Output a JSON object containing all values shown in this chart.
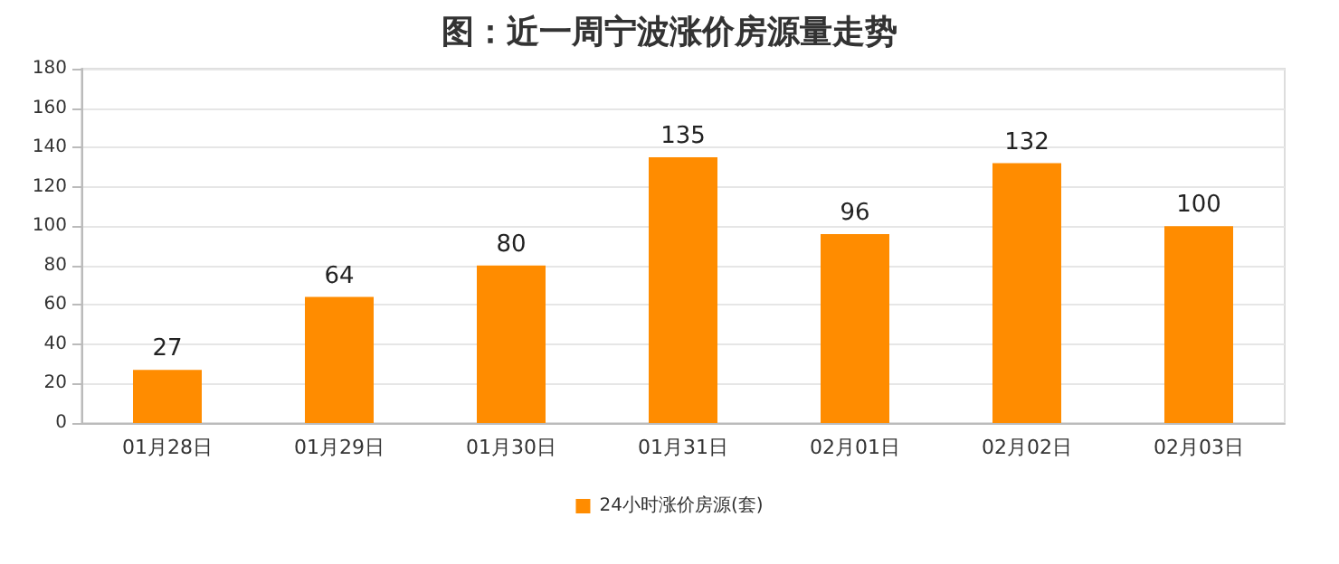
{
  "chart_data": {
    "type": "bar",
    "title": "图：近一周宁波涨价房源量走势",
    "categories": [
      "01月28日",
      "01月29日",
      "01月30日",
      "01月31日",
      "02月01日",
      "02月02日",
      "02月03日"
    ],
    "series": [
      {
        "name": "24小时涨价房源(套)",
        "color": "#ff8c00",
        "values": [
          27,
          64,
          80,
          135,
          96,
          132,
          100
        ]
      }
    ],
    "ylim": [
      0,
      180
    ],
    "yticks": [
      0,
      20,
      40,
      60,
      80,
      100,
      120,
      140,
      160,
      180
    ],
    "grid": "y",
    "legend": "bottom",
    "data_labels": true
  }
}
